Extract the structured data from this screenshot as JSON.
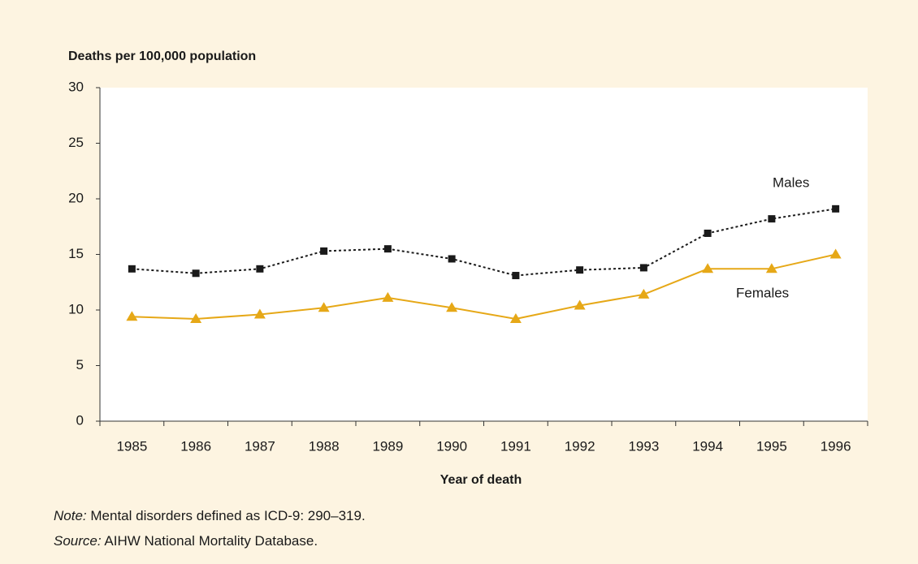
{
  "chart_data": {
    "type": "line",
    "y_label": "Deaths per 100,000 population",
    "x_label": "Year of death",
    "categories": [
      "1985",
      "1986",
      "1987",
      "1988",
      "1989",
      "1990",
      "1991",
      "1992",
      "1993",
      "1994",
      "1995",
      "1996"
    ],
    "series": [
      {
        "name": "Males",
        "color": "#1a1a1a",
        "marker": "square",
        "dash": true,
        "values": [
          13.7,
          13.3,
          13.7,
          15.3,
          15.5,
          14.6,
          13.1,
          13.6,
          13.8,
          16.9,
          18.2,
          19.1
        ]
      },
      {
        "name": "Females",
        "color": "#e6a817",
        "marker": "triangle",
        "dash": false,
        "values": [
          9.4,
          9.2,
          9.6,
          10.2,
          11.1,
          10.2,
          9.2,
          10.4,
          11.4,
          13.7,
          13.7,
          15.0
        ]
      }
    ],
    "ylim": [
      0,
      30
    ],
    "yticks": [
      0,
      5,
      10,
      15,
      20,
      25,
      30
    ],
    "grid": false
  },
  "notes": {
    "note_label": "Note:",
    "note_text": "Mental disorders defined as ICD-9: 290–319.",
    "source_label": "Source:",
    "source_text": "AIHW National Mortality Database."
  }
}
